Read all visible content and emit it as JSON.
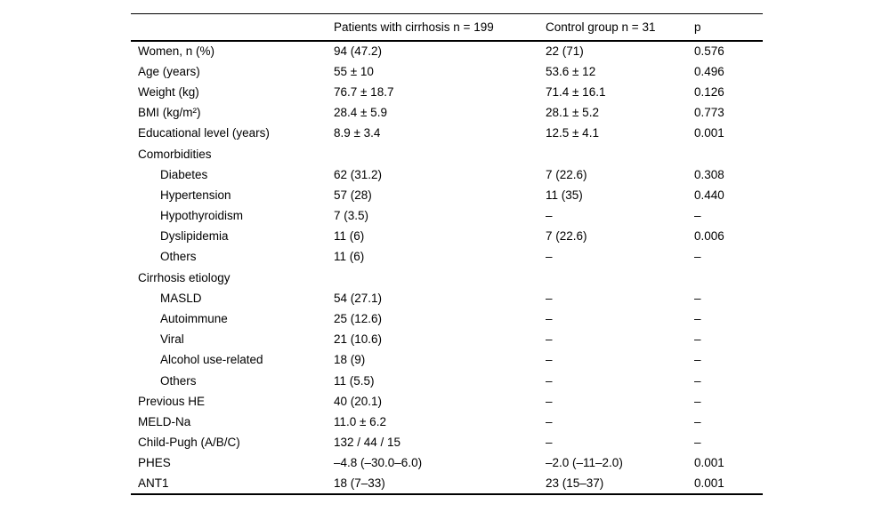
{
  "page": {
    "background": "#ffffff",
    "text_color": "#000000"
  },
  "table": {
    "header": {
      "col1": "",
      "col2": "Patients with cirrhosis n = 199",
      "col3": "Control group n = 31",
      "col4": "p"
    },
    "rows": [
      {
        "label": "Women, n (%)",
        "indent": false,
        "c2": "94 (47.2)",
        "c3": "22 (71)",
        "c4": "0.576"
      },
      {
        "label": "Age (years)",
        "indent": false,
        "c2": "55 ± 10",
        "c3": "53.6 ± 12",
        "c4": "0.496"
      },
      {
        "label": "Weight (kg)",
        "indent": false,
        "c2": "76.7 ± 18.7",
        "c3": "71.4 ± 16.1",
        "c4": "0.126"
      },
      {
        "label": "BMI (kg/m²)",
        "indent": false,
        "c2": "28.4 ± 5.9",
        "c3": "28.1 ± 5.2",
        "c4": "0.773"
      },
      {
        "label": "Educational level (years)",
        "indent": false,
        "c2": "8.9 ± 3.4",
        "c3": "12.5 ± 4.1",
        "c4": "0.001"
      },
      {
        "label": "Comorbidities",
        "indent": false,
        "c2": "",
        "c3": "",
        "c4": ""
      },
      {
        "label": "Diabetes",
        "indent": true,
        "c2": "62 (31.2)",
        "c3": "7 (22.6)",
        "c4": "0.308"
      },
      {
        "label": "Hypertension",
        "indent": true,
        "c2": "57 (28)",
        "c3": "11 (35)",
        "c4": "0.440"
      },
      {
        "label": "Hypothyroidism",
        "indent": true,
        "c2": "7 (3.5)",
        "c3": "–",
        "c4": "–"
      },
      {
        "label": "Dyslipidemia",
        "indent": true,
        "c2": "11 (6)",
        "c3": "7 (22.6)",
        "c4": "0.006"
      },
      {
        "label": "Others",
        "indent": true,
        "c2": "11 (6)",
        "c3": "–",
        "c4": "–"
      },
      {
        "label": "Cirrhosis etiology",
        "indent": false,
        "c2": "",
        "c3": "",
        "c4": ""
      },
      {
        "label": "MASLD",
        "indent": true,
        "c2": "54 (27.1)",
        "c3": "–",
        "c4": "–"
      },
      {
        "label": "Autoimmune",
        "indent": true,
        "c2": "25 (12.6)",
        "c3": "–",
        "c4": "–"
      },
      {
        "label": "Viral",
        "indent": true,
        "c2": "21 (10.6)",
        "c3": "–",
        "c4": "–"
      },
      {
        "label": "Alcohol use-related",
        "indent": true,
        "c2": "18 (9)",
        "c3": "–",
        "c4": "–"
      },
      {
        "label": "Others",
        "indent": true,
        "c2": "11 (5.5)",
        "c3": "–",
        "c4": "–"
      },
      {
        "label": "Previous HE",
        "indent": false,
        "c2": "40 (20.1)",
        "c3": "–",
        "c4": "–"
      },
      {
        "label": "MELD-Na",
        "indent": false,
        "c2": "11.0 ± 6.2",
        "c3": "–",
        "c4": "–"
      },
      {
        "label": "Child-Pugh (A/B/C)",
        "indent": false,
        "c2": "132 / 44 / 15",
        "c3": "–",
        "c4": "–"
      },
      {
        "label": "PHES",
        "indent": false,
        "c2": "–4.8 (–30.0–6.0)",
        "c3": "–2.0 (–11–2.0)",
        "c4": "0.001"
      },
      {
        "label": "ANT1",
        "indent": false,
        "c2": "18 (7–33)",
        "c3": "23 (15–37)",
        "c4": "0.001"
      }
    ]
  }
}
